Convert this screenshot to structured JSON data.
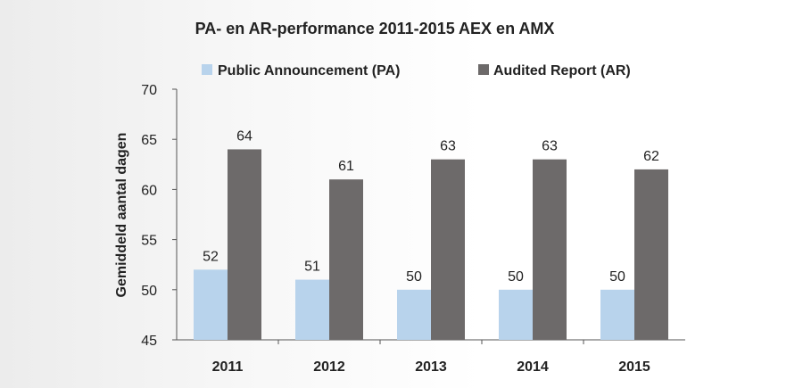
{
  "chart_data": {
    "type": "bar",
    "title": "PA- en AR-performance 2011-2015 AEX en AMX",
    "xlabel": "",
    "ylabel": "Gemiddeld aantal dagen",
    "ylim": [
      45,
      70
    ],
    "yticks": [
      45,
      50,
      55,
      60,
      65,
      70
    ],
    "grid": false,
    "legend": "top",
    "categories": [
      "2011",
      "2012",
      "2013",
      "2014",
      "2015"
    ],
    "series": [
      {
        "name": "Public Announcement (PA)",
        "color": "#b8d3ec",
        "values": [
          52,
          51,
          50,
          50,
          50
        ],
        "labels": [
          "52",
          "51",
          "50",
          "50",
          "50"
        ]
      },
      {
        "name": "Audited Report (AR)",
        "color": "#6d6a6a",
        "values": [
          64,
          61,
          63,
          63,
          62
        ],
        "labels": [
          "64",
          "61",
          "63",
          "63",
          "62"
        ]
      }
    ]
  }
}
